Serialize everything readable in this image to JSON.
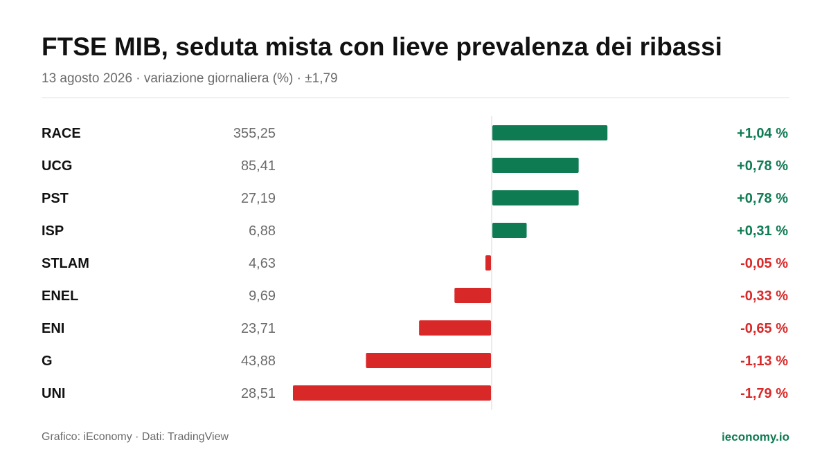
{
  "header": {
    "title": "FTSE MIB, seduta mista con lieve prevalenza dei ribassi",
    "subtitle": "13 agosto 2026 · variazione giornaliera (%) · ±1,79"
  },
  "footer": {
    "source": "Grafico: iEconomy · Dati: TradingView",
    "brand": "ieconomy.io"
  },
  "colors": {
    "positive": "#0f7b53",
    "negative": "#d92828",
    "axis": "#d7d7d7"
  },
  "chart_data": {
    "type": "bar",
    "orientation": "horizontal",
    "title": "FTSE MIB, seduta mista con lieve prevalenza dei ribassi",
    "xlim": [
      -1.79,
      1.79
    ],
    "grid": false,
    "legend": "none",
    "categories": [
      "RACE",
      "UCG",
      "PST",
      "ISP",
      "STLAM",
      "ENEL",
      "ENI",
      "G",
      "UNI"
    ],
    "prices": [
      "355,25",
      "85,41",
      "27,19",
      "6,88",
      "4,63",
      "9,69",
      "23,71",
      "43,88",
      "28,51"
    ],
    "values": [
      1.04,
      0.78,
      0.78,
      0.31,
      -0.05,
      -0.33,
      -0.65,
      -1.13,
      -1.79
    ],
    "value_labels": [
      "+1,04 %",
      "+0,78 %",
      "+0,78 %",
      "+0,31 %",
      "-0,05 %",
      "-0,33 %",
      "-0,65 %",
      "-1,13 %",
      "-1,79 %"
    ]
  }
}
